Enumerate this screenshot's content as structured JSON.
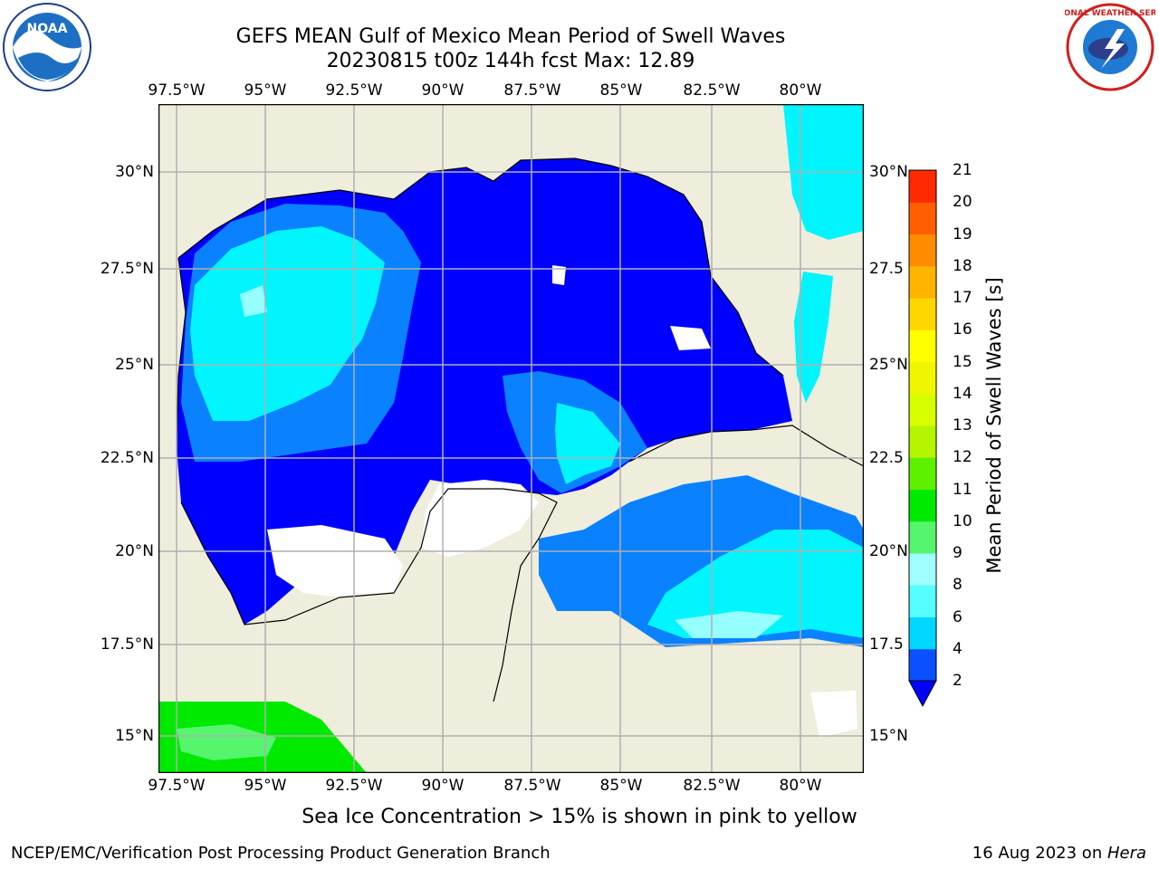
{
  "title": {
    "line1": "GEFS MEAN Gulf of Mexico Mean Period of Swell Waves",
    "line2": "20230815 t00z 144h fcst   Max: 12.89"
  },
  "logos": {
    "left": {
      "name": "noaa-logo",
      "text": "NOAA"
    },
    "right": {
      "name": "nws-logo",
      "text": "NATIONAL WEATHER SERVICE"
    }
  },
  "axes": {
    "lon_labels": [
      "97.5°W",
      "95°W",
      "92.5°W",
      "90°W",
      "87.5°W",
      "85°W",
      "82.5°W",
      "80°W"
    ],
    "lat_labels_left": [
      "30°N",
      "27.5°N",
      "25°N",
      "22.5°N",
      "20°N",
      "17.5°N",
      "15°N"
    ],
    "lat_labels_right": [
      "30°N",
      "27.5",
      "25°N",
      "22.5",
      "20°N",
      "17.5",
      "15°N"
    ]
  },
  "colorbar": {
    "label": "Mean Period of Swell Waves [s]",
    "ticks": [
      "2",
      "4",
      "6",
      "8",
      "9",
      "10",
      "11",
      "12",
      "13",
      "14",
      "15",
      "16",
      "17",
      "18",
      "19",
      "20",
      "21"
    ],
    "colors": [
      "#0a50ff",
      "#00d7ff",
      "#55ffff",
      "#a0ffff",
      "#55f56e",
      "#00ea00",
      "#5ff000",
      "#b4f500",
      "#d7ff00",
      "#f0f500",
      "#ffff00",
      "#ffd700",
      "#ffb400",
      "#ff8c00",
      "#ff5f00",
      "#ff2a00"
    ],
    "extend_color": "#0000ff"
  },
  "map_colors": {
    "land": "#efeddc",
    "band_2_4": "#0000ff",
    "band_4_6": "#0a82ff",
    "band_6_8": "#00f5ff",
    "band_8_9": "#96ffff",
    "band_10_11": "#00ea00",
    "band_11_12": "#55f56e",
    "grid": "#b0b0b0"
  },
  "note": "Sea Ice Concentration > 15% is shown in pink to yellow",
  "footer": {
    "left": "NCEP/EMC/Verification Post Processing Product Generation Branch",
    "date": "16 Aug 2023 on ",
    "machine": "Hera"
  }
}
